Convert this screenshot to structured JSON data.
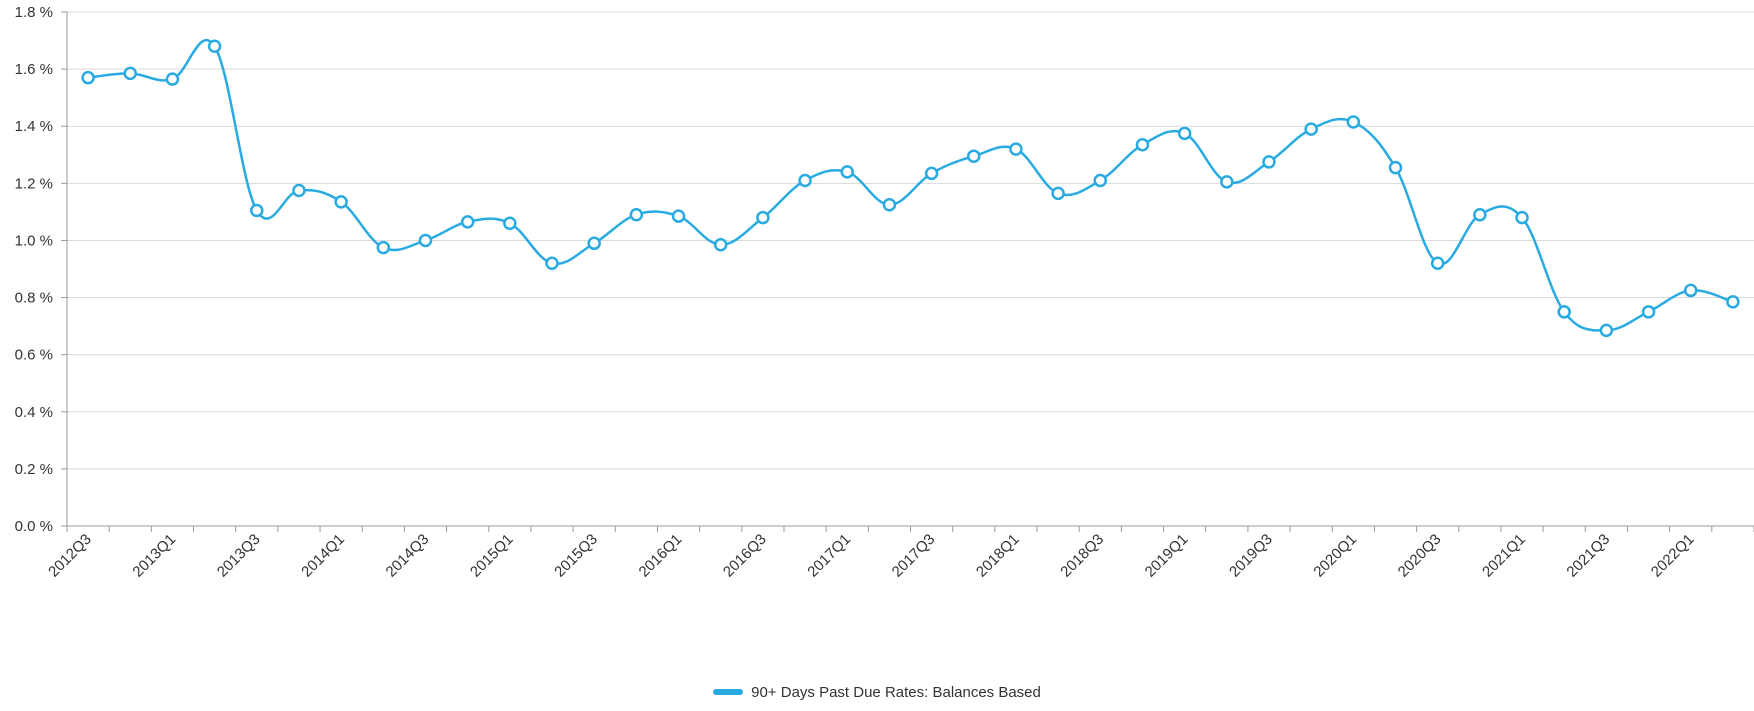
{
  "chart_data": {
    "type": "line",
    "title": "",
    "xlabel": "",
    "ylabel": "",
    "ylim": [
      0,
      1.8
    ],
    "y_ticks": [
      "0.0 %",
      "0.2 %",
      "0.4 %",
      "0.6 %",
      "0.8 %",
      "1.0 %",
      "1.2 %",
      "1.4 %",
      "1.6 %",
      "1.8 %"
    ],
    "y_tick_values": [
      0,
      0.2,
      0.4,
      0.6,
      0.8,
      1.0,
      1.2,
      1.4,
      1.6,
      1.8
    ],
    "x_tick_labels": [
      "2012Q3",
      "2013Q1",
      "2013Q3",
      "2014Q1",
      "2014Q3",
      "2015Q1",
      "2015Q3",
      "2016Q1",
      "2016Q3",
      "2017Q1",
      "2017Q3",
      "2018Q1",
      "2018Q3",
      "2019Q1",
      "2019Q3",
      "2020Q1",
      "2020Q3",
      "2021Q1",
      "2021Q3",
      "2022Q1"
    ],
    "categories": [
      "2012Q3",
      "2012Q4",
      "2013Q1",
      "2013Q2",
      "2013Q3",
      "2013Q4",
      "2014Q1",
      "2014Q2",
      "2014Q3",
      "2014Q4",
      "2015Q1",
      "2015Q2",
      "2015Q3",
      "2015Q4",
      "2016Q1",
      "2016Q2",
      "2016Q3",
      "2016Q4",
      "2017Q1",
      "2017Q2",
      "2017Q3",
      "2017Q4",
      "2018Q1",
      "2018Q2",
      "2018Q3",
      "2018Q4",
      "2019Q1",
      "2019Q2",
      "2019Q3",
      "2019Q4",
      "2020Q1",
      "2020Q2",
      "2020Q3",
      "2020Q4",
      "2021Q1",
      "2021Q2",
      "2021Q3",
      "2021Q4",
      "2022Q1",
      "2022Q2"
    ],
    "grid": true,
    "legend_position": "bottom-center",
    "series": [
      {
        "name": "90+ Days Past Due Rates: Balances Based",
        "color": "#29abe2",
        "values": [
          1.57,
          1.585,
          1.565,
          1.68,
          1.105,
          1.175,
          1.135,
          0.975,
          1.0,
          1.065,
          1.06,
          0.92,
          0.99,
          1.09,
          1.085,
          0.985,
          1.08,
          1.21,
          1.24,
          1.125,
          1.235,
          1.295,
          1.32,
          1.165,
          1.21,
          1.335,
          1.375,
          1.205,
          1.275,
          1.39,
          1.415,
          1.255,
          0.92,
          1.09,
          1.08,
          0.75,
          0.685,
          0.75,
          0.825,
          0.785
        ]
      }
    ]
  }
}
